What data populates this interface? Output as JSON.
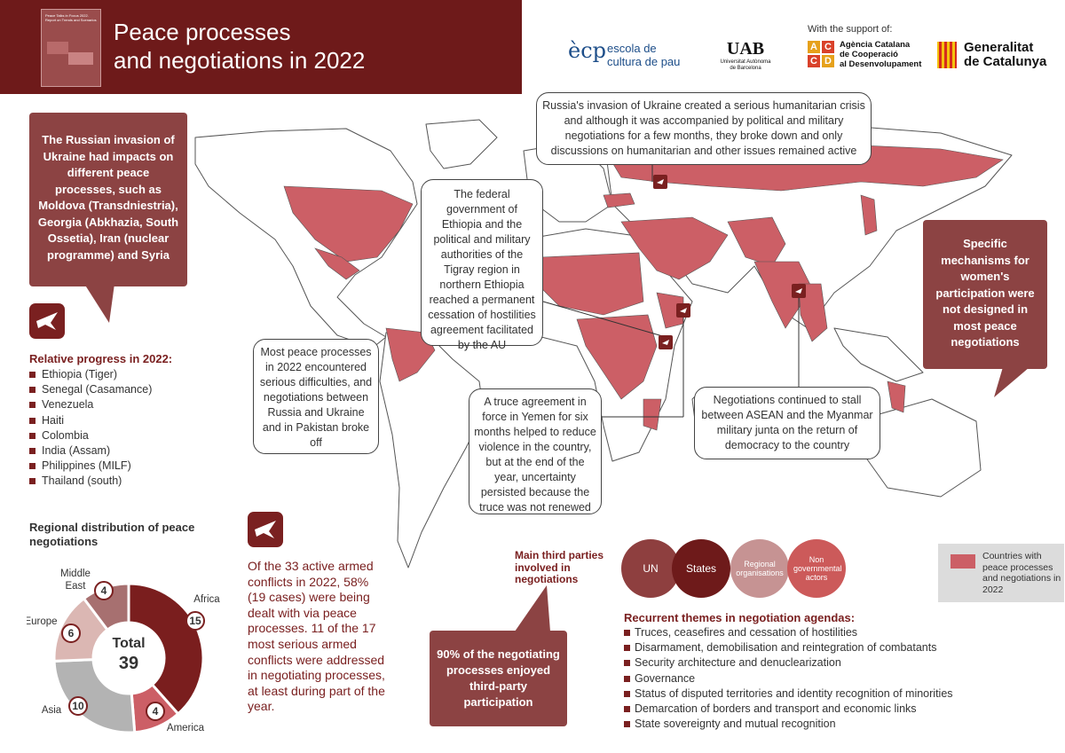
{
  "header": {
    "title_line1": "Peace processes",
    "title_line2": "and negotiations in 2022",
    "cover_title": "Peace Talks in Focus 2022. Report on Trends and Scenarios"
  },
  "logos": {
    "support_text": "With the support of:",
    "ecp_mark": "ècp",
    "ecp_line1": "escola de",
    "ecp_line2": "cultura de pau",
    "uab_mark": "UAB",
    "uab_sub1": "Universitat Autònoma",
    "uab_sub2": "de Barcelona",
    "acd_letters": [
      "A",
      "C",
      "C",
      "D"
    ],
    "acd_line1": "Agència Catalana",
    "acd_line2": "de Cooperació",
    "acd_line3": "al Desenvolupament",
    "gen_line1": "Generalitat",
    "gen_line2": "de Catalunya"
  },
  "callouts": {
    "left": "The Russian invasion of Ukraine had impacts on different peace processes, such as Moldova (Transdniestria), Georgia (Abkhazia, South Ossetia), Iran (nuclear programme) and Syria",
    "right": "Specific mechanisms for women's participation were not designed in most peace negotiations",
    "bottom": "90% of the negotiating processes enjoyed third-party participation",
    "russia": "Russia's invasion of Ukraine created a serious humanitarian crisis and although it was accompanied by political and military negotiations for a few months, they broke down and only discussions on humanitarian and other issues remained active",
    "ethiopia": "The federal government of Ethiopia and the political and military authorities of the Tigray region in northern Ethiopia reached a permanent cessation of hostilities agreement facilitated by the AU",
    "mostpeace": "Most peace processes in 2022 encountered serious difficulties, and negotiations between Russia and Ukraine and in Pakistan broke off",
    "yemen": "A truce agreement in force in Yemen for six months helped to reduce violence in the country, but at the end of the year, uncertainty persisted because the truce was not renewed",
    "asean": "Negotiations continued to stall between ASEAN and the Myanmar military junta on the return of democracy to the country"
  },
  "progress": {
    "title": "Relative progress in 2022:",
    "items": [
      "Ethiopia (Tiger)",
      "Senegal (Casamance)",
      "Venezuela",
      "Haiti",
      "Colombia",
      "India (Assam)",
      "Philippines (MILF)",
      "Thailand (south)"
    ]
  },
  "regional": {
    "title": "Regional distribution of peace negotiations",
    "total_label": "Total",
    "total_value": "39"
  },
  "chart_data": {
    "type": "pie",
    "categories": [
      "Africa",
      "America",
      "Asia",
      "Europe",
      "Middle East"
    ],
    "values": [
      15,
      4,
      10,
      6,
      4
    ],
    "colors": [
      "#7a1e1e",
      "#cc5f66",
      "#b3b3b3",
      "#dbb7b3",
      "#a77070"
    ],
    "total": 39
  },
  "conflicts_text": "Of the 33 active armed conflicts in 2022, 58% (19 cases) were being dealt with via peace processes. 11 of the 17 most serious armed conflicts were addressed in negotiating processes, at least during part of the year.",
  "third_parties": {
    "title": "Main third parties involved in negotiations",
    "items": [
      {
        "label": "UN",
        "color": "#8e3f3f"
      },
      {
        "label": "States",
        "color": "#6e1a1a"
      },
      {
        "label": "Regional organisations",
        "color": "#c69393"
      },
      {
        "label": "Non governmental actors",
        "color": "#cc5a5a"
      }
    ]
  },
  "legend": {
    "text": "Countries with peace processes and negotiations in 2022",
    "color": "#cc5f66"
  },
  "themes": {
    "title": "Recurrent themes in negotiation agendas:",
    "items": [
      "Truces, ceasefires and cessation of hostilities",
      "Disarmament, demobilisation and reintegration of combatants",
      "Security architecture and denuclearization",
      "Governance",
      "Status of disputed territories and identity recognition of minorities",
      "Demarcation of borders and transport and economic links",
      "State sovereignty and mutual recognition"
    ]
  },
  "colors": {
    "header": "#6e1a1a",
    "callout": "#8c4343",
    "map_highlight": "#cc5f66",
    "accent_text": "#7a2020"
  }
}
